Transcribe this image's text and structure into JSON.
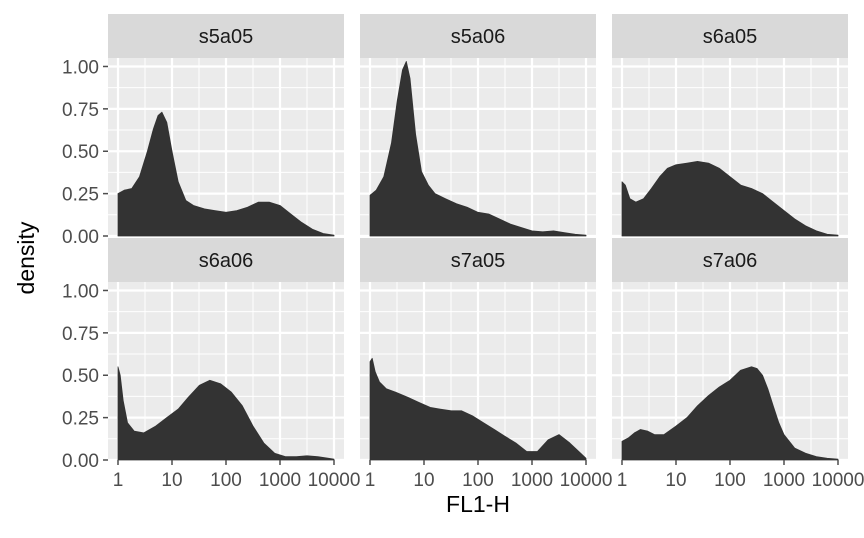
{
  "chart_data": {
    "type": "area",
    "subtype": "density-facets",
    "title": "",
    "xlabel": "FL1-H",
    "ylabel": "density",
    "x_scale": "log10",
    "xlim": [
      1,
      10000
    ],
    "ylim": [
      0,
      1.05
    ],
    "x_ticks": [
      1,
      10,
      100,
      1000,
      10000
    ],
    "x_tick_labels": [
      "1",
      "10",
      "100",
      "1000",
      "10000"
    ],
    "y_ticks": [
      0,
      0.25,
      0.5,
      0.75,
      1.0
    ],
    "y_tick_labels": [
      "0.00",
      "0.25",
      "0.50",
      "0.75",
      "1.00"
    ],
    "grid": true,
    "legend": "none",
    "colors": {
      "fill": "#333333",
      "panel_bg": "#ebebeb",
      "strip_bg": "#d9d9d9",
      "grid": "#ffffff",
      "tick": "#4d4d4d"
    },
    "panels": [
      {
        "label": "s5a05",
        "x": [
          1,
          1.3,
          1.8,
          2.5,
          3.5,
          4.5,
          5.5,
          6.5,
          8,
          10,
          13,
          18,
          25,
          40,
          63,
          100,
          158,
          250,
          400,
          630,
          1000,
          1580,
          2510,
          3980,
          6310,
          10000
        ],
        "y": [
          0.25,
          0.27,
          0.28,
          0.35,
          0.5,
          0.63,
          0.71,
          0.73,
          0.67,
          0.5,
          0.32,
          0.21,
          0.18,
          0.16,
          0.15,
          0.14,
          0.15,
          0.17,
          0.2,
          0.2,
          0.18,
          0.13,
          0.08,
          0.04,
          0.015,
          0.005
        ]
      },
      {
        "label": "s5a06",
        "x": [
          1,
          1.3,
          1.8,
          2.5,
          3.2,
          4,
          4.7,
          5.5,
          7,
          9,
          12,
          16,
          25,
          40,
          63,
          100,
          158,
          250,
          400,
          630,
          1000,
          1580,
          2510,
          3980,
          6310,
          10000
        ],
        "y": [
          0.24,
          0.27,
          0.35,
          0.55,
          0.8,
          0.98,
          1.03,
          0.93,
          0.6,
          0.38,
          0.3,
          0.25,
          0.22,
          0.19,
          0.17,
          0.14,
          0.13,
          0.1,
          0.07,
          0.05,
          0.03,
          0.025,
          0.03,
          0.02,
          0.01,
          0.005
        ]
      },
      {
        "label": "s6a05",
        "x": [
          1,
          1.15,
          1.4,
          1.8,
          2.5,
          3.5,
          5,
          7,
          10,
          16,
          25,
          40,
          63,
          100,
          158,
          250,
          400,
          630,
          1000,
          1580,
          2510,
          3980,
          6310,
          10000
        ],
        "y": [
          0.32,
          0.3,
          0.22,
          0.2,
          0.22,
          0.28,
          0.35,
          0.4,
          0.42,
          0.43,
          0.44,
          0.43,
          0.4,
          0.35,
          0.3,
          0.28,
          0.25,
          0.2,
          0.15,
          0.1,
          0.06,
          0.03,
          0.01,
          0.005
        ]
      },
      {
        "label": "s6a06",
        "x": [
          1,
          1.1,
          1.25,
          1.5,
          2,
          3,
          5,
          8,
          13,
          20,
          32,
          50,
          79,
          126,
          200,
          316,
          501,
          794,
          1260,
          2000,
          3160,
          5010,
          7940,
          10000
        ],
        "y": [
          0.55,
          0.5,
          0.35,
          0.22,
          0.17,
          0.16,
          0.2,
          0.25,
          0.3,
          0.37,
          0.44,
          0.47,
          0.45,
          0.4,
          0.32,
          0.2,
          0.1,
          0.04,
          0.02,
          0.02,
          0.025,
          0.02,
          0.01,
          0.005
        ]
      },
      {
        "label": "s7a05",
        "x": [
          1,
          1.1,
          1.25,
          1.5,
          2,
          3,
          5,
          8,
          13,
          20,
          32,
          50,
          79,
          126,
          200,
          316,
          501,
          794,
          1260,
          2000,
          3160,
          5010,
          7940,
          10000
        ],
        "y": [
          0.58,
          0.6,
          0.52,
          0.46,
          0.42,
          0.4,
          0.37,
          0.34,
          0.31,
          0.3,
          0.29,
          0.29,
          0.26,
          0.22,
          0.18,
          0.14,
          0.1,
          0.05,
          0.05,
          0.12,
          0.15,
          0.1,
          0.04,
          0.01
        ]
      },
      {
        "label": "s7a06",
        "x": [
          1,
          1.3,
          1.7,
          2.2,
          3,
          4,
          6,
          10,
          16,
          25,
          40,
          63,
          100,
          158,
          250,
          316,
          400,
          501,
          630,
          800,
          1000,
          1580,
          2510,
          3980,
          6310,
          10000
        ],
        "y": [
          0.11,
          0.13,
          0.16,
          0.18,
          0.17,
          0.15,
          0.15,
          0.2,
          0.25,
          0.32,
          0.38,
          0.43,
          0.47,
          0.53,
          0.55,
          0.54,
          0.5,
          0.42,
          0.32,
          0.22,
          0.15,
          0.07,
          0.04,
          0.02,
          0.01,
          0.005
        ]
      }
    ]
  }
}
